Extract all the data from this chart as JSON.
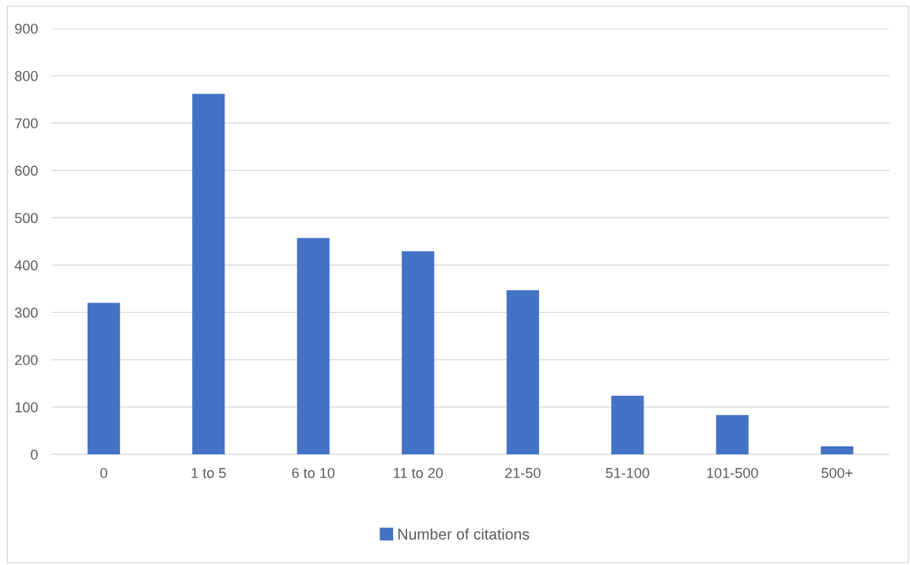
{
  "chart_data": {
    "type": "bar",
    "categories": [
      "0",
      "1 to 5",
      "6 to 10",
      "11 to 20",
      "21-50",
      "51-100",
      "101-500",
      "500+"
    ],
    "series": [
      {
        "name": "Number of citations",
        "color": "#4472c4",
        "values": [
          320,
          762,
          457,
          429,
          347,
          124,
          83,
          17
        ]
      }
    ],
    "ylim": [
      0,
      900
    ],
    "yticks": [
      0,
      100,
      200,
      300,
      400,
      500,
      600,
      700,
      800,
      900
    ],
    "grid": "y",
    "legend": "bottom"
  }
}
